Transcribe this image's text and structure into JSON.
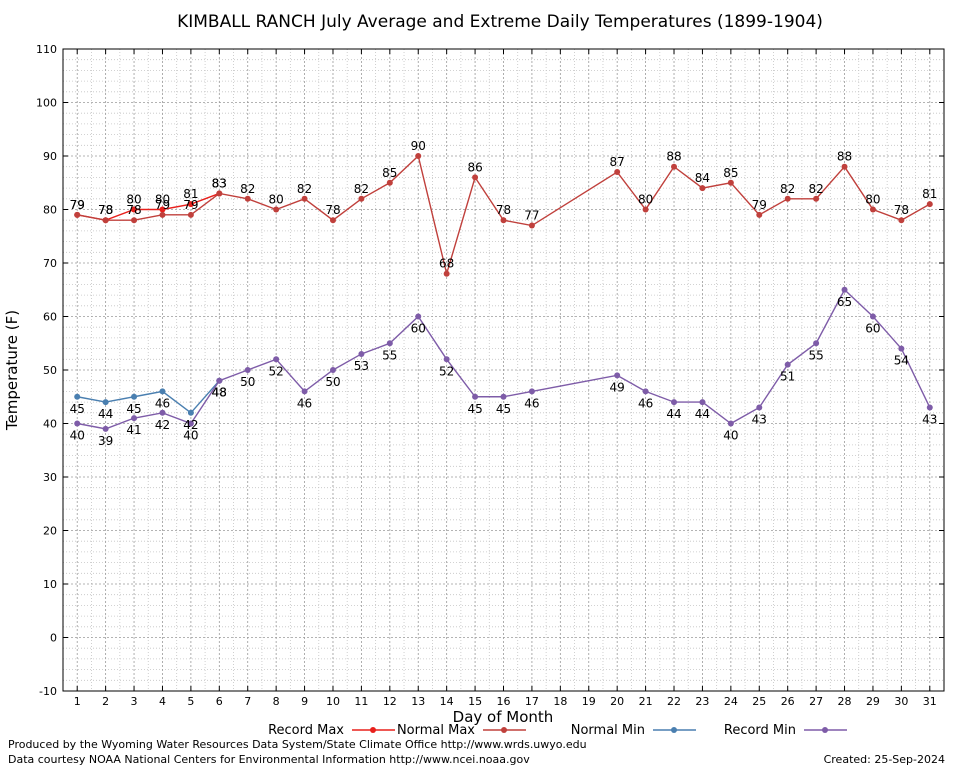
{
  "chart_data": {
    "type": "line",
    "title": "KIMBALL RANCH July Average and Extreme Daily Temperatures (1899-1904)",
    "xlabel": "Day of Month",
    "ylabel": "Temperature (F)",
    "xlim": [
      0.5,
      31.5
    ],
    "ylim": [
      -10,
      110
    ],
    "yticks": [
      -10,
      0,
      10,
      20,
      30,
      40,
      50,
      60,
      70,
      80,
      90,
      100,
      110
    ],
    "xticks": [
      1,
      2,
      3,
      4,
      5,
      6,
      7,
      8,
      9,
      10,
      11,
      12,
      13,
      14,
      15,
      16,
      17,
      18,
      19,
      20,
      21,
      22,
      23,
      24,
      25,
      26,
      27,
      28,
      29,
      30,
      31
    ],
    "grid": true,
    "legend_position": "bottom",
    "series": [
      {
        "name": "Record Max",
        "color": "#e8201c",
        "label_position": "above",
        "points": [
          [
            1,
            79
          ],
          [
            2,
            78
          ],
          [
            3,
            80
          ],
          [
            4,
            80
          ],
          [
            5,
            81
          ],
          [
            6,
            83
          ]
        ]
      },
      {
        "name": "Normal Max",
        "color": "#c0403c",
        "label_position": "above",
        "points": [
          [
            1,
            79
          ],
          [
            2,
            78
          ],
          [
            3,
            78
          ],
          [
            4,
            79
          ],
          [
            5,
            79
          ],
          [
            6,
            83
          ],
          [
            7,
            82
          ],
          [
            8,
            80
          ],
          [
            9,
            82
          ],
          [
            10,
            78
          ],
          [
            11,
            82
          ],
          [
            12,
            85
          ],
          [
            13,
            90
          ],
          [
            14,
            68
          ],
          [
            15,
            86
          ],
          [
            16,
            78
          ],
          [
            17,
            77
          ],
          [
            20,
            87
          ],
          [
            21,
            80
          ],
          [
            22,
            88
          ],
          [
            23,
            84
          ],
          [
            24,
            85
          ],
          [
            25,
            79
          ],
          [
            26,
            82
          ],
          [
            27,
            82
          ],
          [
            28,
            88
          ],
          [
            29,
            80
          ],
          [
            30,
            78
          ],
          [
            31,
            81
          ]
        ]
      },
      {
        "name": "Normal Min",
        "color": "#4a7fb0",
        "label_position": "below",
        "points": [
          [
            1,
            45
          ],
          [
            2,
            44
          ],
          [
            3,
            45
          ],
          [
            4,
            46
          ],
          [
            5,
            42
          ],
          [
            6,
            48
          ]
        ]
      },
      {
        "name": "Record Min",
        "color": "#7e5ca8",
        "label_position": "below",
        "points": [
          [
            1,
            40
          ],
          [
            2,
            39
          ],
          [
            3,
            41
          ],
          [
            4,
            42
          ],
          [
            5,
            40
          ],
          [
            6,
            48
          ],
          [
            7,
            50
          ],
          [
            8,
            52
          ],
          [
            9,
            46
          ],
          [
            10,
            50
          ],
          [
            11,
            53
          ],
          [
            12,
            55
          ],
          [
            13,
            60
          ],
          [
            14,
            52
          ],
          [
            15,
            45
          ],
          [
            16,
            45
          ],
          [
            17,
            46
          ],
          [
            20,
            49
          ],
          [
            21,
            46
          ],
          [
            22,
            44
          ],
          [
            23,
            44
          ],
          [
            24,
            40
          ],
          [
            25,
            43
          ],
          [
            26,
            51
          ],
          [
            27,
            55
          ],
          [
            28,
            65
          ],
          [
            29,
            60
          ],
          [
            30,
            54
          ],
          [
            31,
            43
          ]
        ]
      }
    ]
  },
  "footer": {
    "produced_by": "Produced by the Wyoming Water Resources Data System/State Climate Office http://www.wrds.uwyo.edu",
    "courtesy": "Data courtesy NOAA National Centers for Environmental Information http://www.ncei.noaa.gov",
    "created": "Created:  25-Sep-2024"
  }
}
